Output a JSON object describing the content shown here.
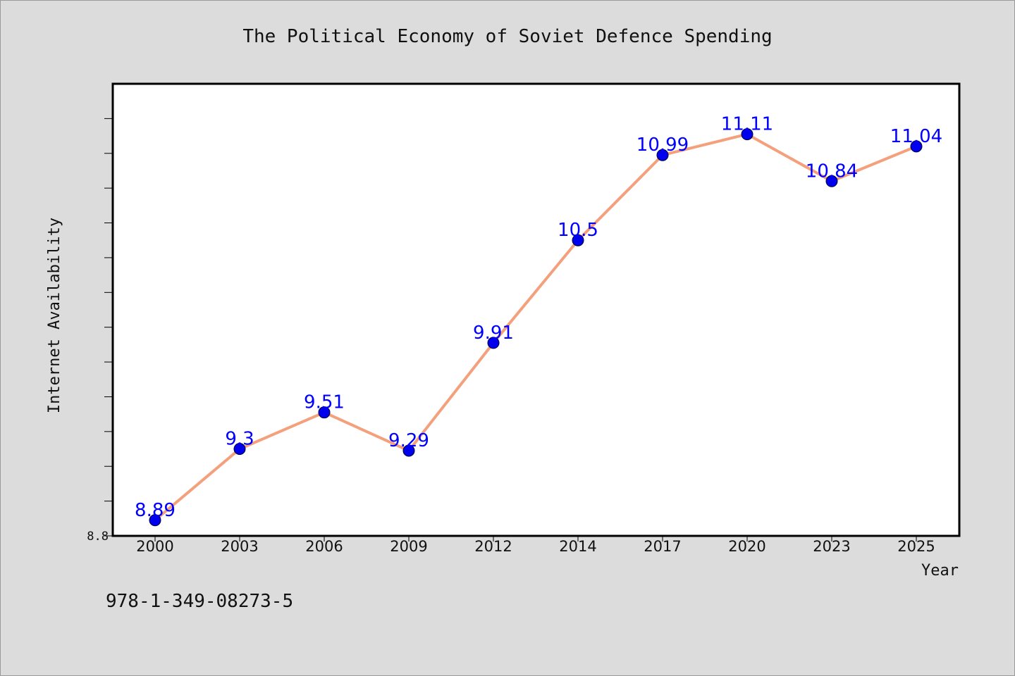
{
  "chart_data": {
    "type": "line",
    "title": "The Political Economy of Soviet Defence Spending",
    "xlabel": "Year",
    "ylabel": "Internet Availability",
    "categories": [
      "2000",
      "2003",
      "2006",
      "2009",
      "2012",
      "2014",
      "2017",
      "2020",
      "2023",
      "2025"
    ],
    "values": [
      8.89,
      9.3,
      9.51,
      9.29,
      9.91,
      10.5,
      10.99,
      11.11,
      10.84,
      11.04
    ],
    "data_labels": [
      "8.89",
      "9.3",
      "9.51",
      "9.29",
      "9.91",
      "10.5",
      "10.99",
      "11.11",
      "10.84",
      "11.04"
    ],
    "ylim": [
      8.8,
      11.4
    ],
    "ytick_labels": [
      "8.8"
    ],
    "line_color": "#f4a07c",
    "marker_color": "#0000ee",
    "label_color": "#0000ff",
    "grid": false,
    "legend": "none"
  },
  "footer": {
    "isbn": "978-1-349-08273-5"
  }
}
